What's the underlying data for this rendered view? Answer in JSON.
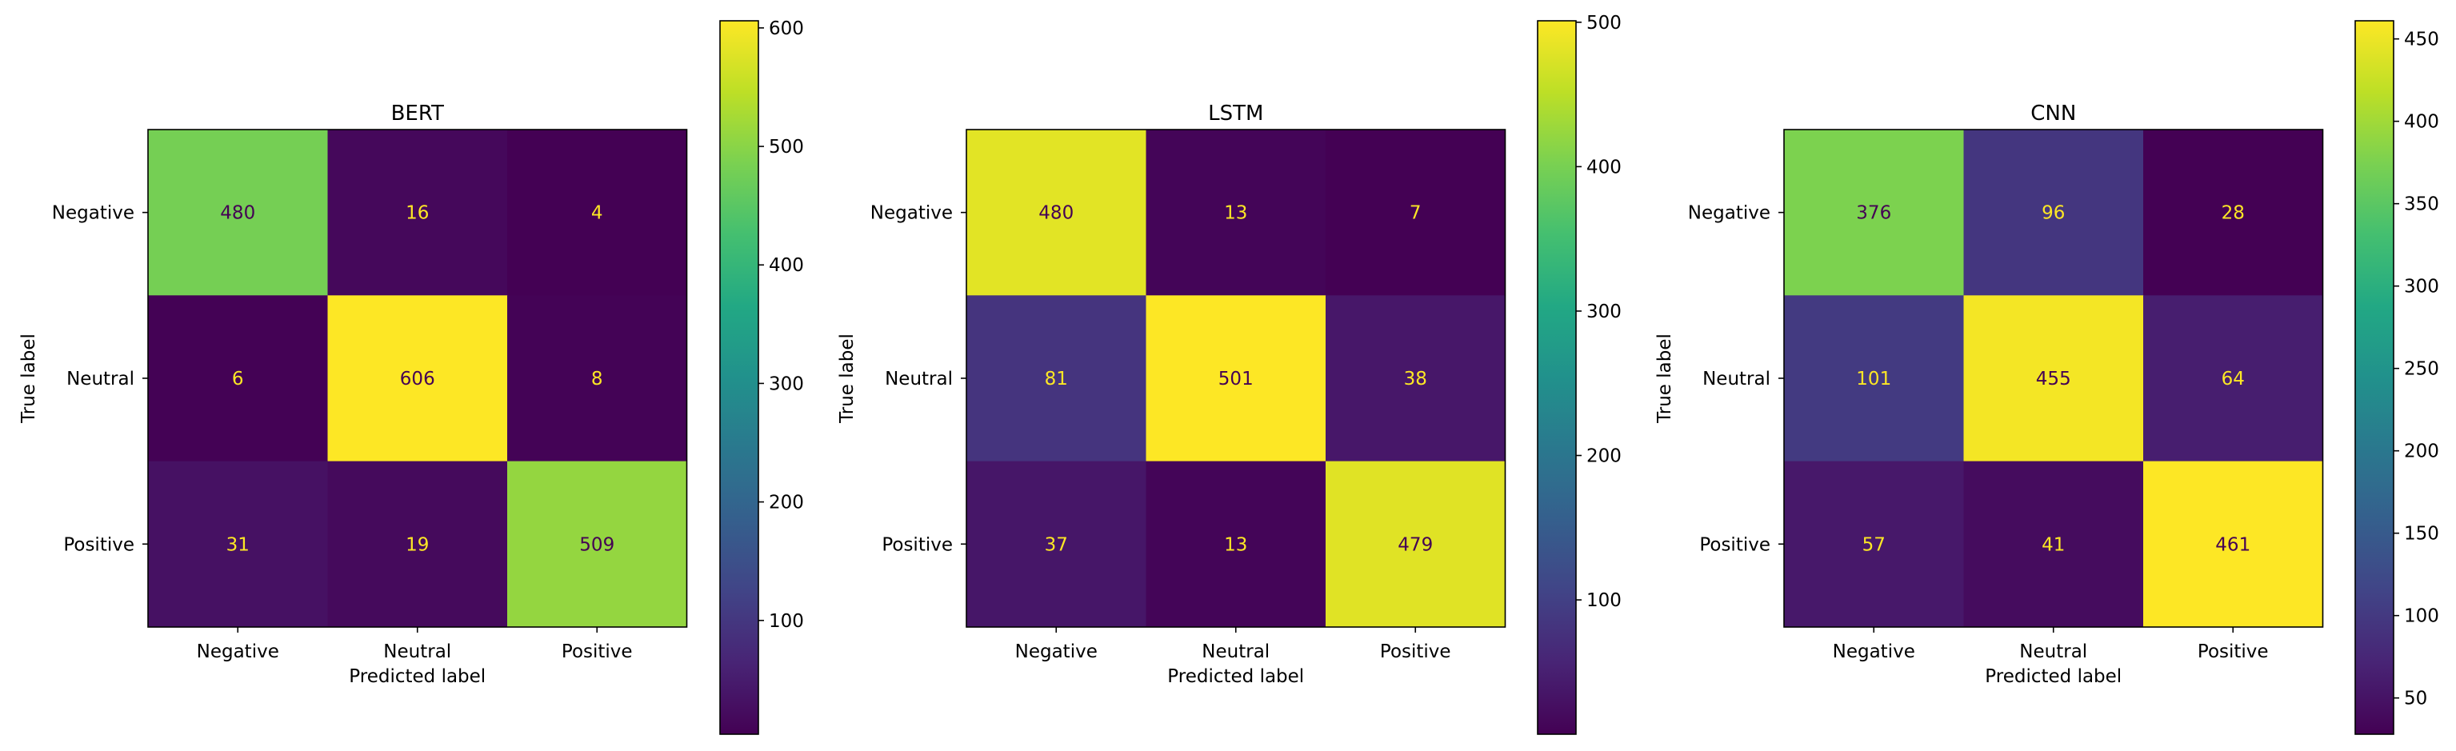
{
  "chart_data": [
    {
      "type": "heatmap",
      "title": "BERT",
      "xlabel": "Predicted label",
      "ylabel": "True label",
      "x_categories": [
        "Negative",
        "Neutral",
        "Positive"
      ],
      "y_categories": [
        "Negative",
        "Neutral",
        "Positive"
      ],
      "matrix": [
        [
          480,
          16,
          4
        ],
        [
          6,
          606,
          8
        ],
        [
          31,
          19,
          509
        ]
      ],
      "vmin": 4,
      "vmax": 606,
      "colorbar_ticks": [
        100,
        200,
        300,
        400,
        500,
        600
      ],
      "colormap": "viridis"
    },
    {
      "type": "heatmap",
      "title": "LSTM",
      "xlabel": "Predicted label",
      "ylabel": "True label",
      "x_categories": [
        "Negative",
        "Neutral",
        "Positive"
      ],
      "y_categories": [
        "Negative",
        "Neutral",
        "Positive"
      ],
      "matrix": [
        [
          480,
          13,
          7
        ],
        [
          81,
          501,
          38
        ],
        [
          37,
          13,
          479
        ]
      ],
      "vmin": 7,
      "vmax": 501,
      "colorbar_ticks": [
        100,
        200,
        300,
        400,
        500
      ],
      "colormap": "viridis"
    },
    {
      "type": "heatmap",
      "title": "CNN",
      "xlabel": "Predicted label",
      "ylabel": "True label",
      "x_categories": [
        "Negative",
        "Neutral",
        "Positive"
      ],
      "y_categories": [
        "Negative",
        "Neutral",
        "Positive"
      ],
      "matrix": [
        [
          376,
          96,
          28
        ],
        [
          101,
          455,
          64
        ],
        [
          57,
          41,
          461
        ]
      ],
      "vmin": 28,
      "vmax": 461,
      "colorbar_ticks": [
        50,
        100,
        150,
        200,
        250,
        300,
        350,
        400,
        450
      ],
      "colormap": "viridis"
    }
  ],
  "colors": {
    "text_on_dark": "#fde725",
    "text_on_light": "#440154",
    "axis": "#000000"
  }
}
